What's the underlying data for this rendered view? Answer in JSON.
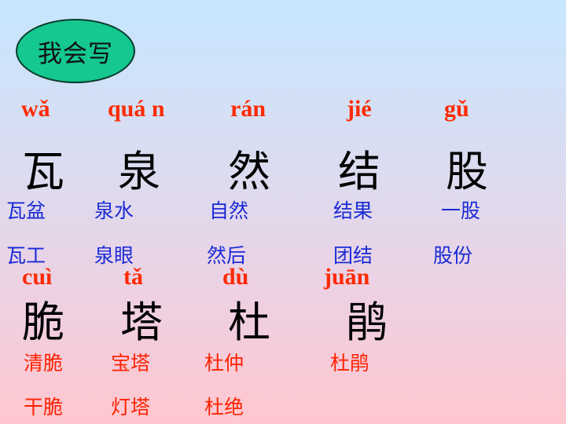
{
  "badge": {
    "label": "我会写"
  },
  "row1": {
    "pinyin": [
      "wǎ",
      "quá n",
      "rán",
      "jié",
      "gǔ"
    ],
    "chars": [
      "瓦",
      "泉",
      "然",
      "结",
      "股"
    ],
    "words_a": [
      "瓦盆",
      "泉水",
      "自然",
      "结果",
      "一股"
    ],
    "words_b": [
      "瓦工",
      "泉眼",
      "然后",
      "团结",
      "股份"
    ]
  },
  "row2": {
    "pinyin": [
      "cuì",
      "tǎ",
      "dù",
      "juān"
    ],
    "chars": [
      "脆",
      "塔",
      "杜",
      "鹃"
    ],
    "words_a": [
      "清脆",
      "宝塔",
      "杜仲",
      "杜鹃"
    ],
    "words_b": [
      "干脆",
      "灯塔",
      "杜绝"
    ]
  },
  "colors": {
    "pinyin": "#ff2a00",
    "char": "#000000",
    "word_row1": "#1a2ad6",
    "word_row2": "#ff2200",
    "badge_fill": "#14c890"
  }
}
